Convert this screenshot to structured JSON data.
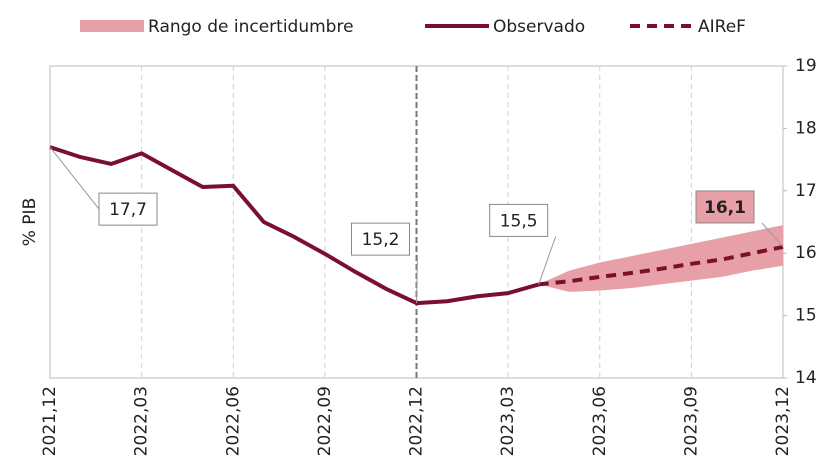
{
  "chart_data": {
    "type": "line",
    "y_label": "% PIB",
    "categories": [
      "2021,12",
      null,
      null,
      "2022,03",
      null,
      null,
      "2022,06",
      null,
      null,
      "2022,09",
      null,
      null,
      "2022,12",
      null,
      null,
      "2023,03",
      null,
      null,
      "2023,06",
      null,
      null,
      "2023,09",
      null,
      null,
      "2023,12"
    ],
    "band": {
      "name": "Rango de incertidumbre",
      "color": "#e8a0a8",
      "low": [
        null,
        null,
        null,
        null,
        null,
        null,
        null,
        null,
        null,
        null,
        null,
        null,
        null,
        null,
        null,
        null,
        15.5,
        15.38,
        15.4,
        15.44,
        15.5,
        15.56,
        15.62,
        15.72,
        15.8
      ],
      "high": [
        null,
        null,
        null,
        null,
        null,
        null,
        null,
        null,
        null,
        null,
        null,
        null,
        null,
        null,
        null,
        null,
        15.5,
        15.72,
        15.85,
        15.95,
        16.05,
        16.15,
        16.25,
        16.35,
        16.45
      ]
    },
    "series": [
      {
        "name": "Observado",
        "color": "#7b0f2e",
        "dash": false,
        "values": [
          17.7,
          17.54,
          17.43,
          17.6,
          17.33,
          17.06,
          17.08,
          16.5,
          16.26,
          15.99,
          15.7,
          15.43,
          15.2,
          15.23,
          15.31,
          15.36,
          15.5,
          null,
          null,
          null,
          null,
          null,
          null,
          null,
          null
        ],
        "value_labels": [
          "17,7",
          null,
          null,
          null,
          null,
          null,
          null,
          null,
          null,
          null,
          null,
          null,
          "15,2",
          null,
          null,
          null,
          "15,5",
          null,
          null,
          null,
          null,
          null,
          null,
          null,
          null
        ]
      },
      {
        "name": "AIReF",
        "color": "#7b0f2e",
        "dash": true,
        "values": [
          null,
          null,
          null,
          null,
          null,
          null,
          null,
          null,
          null,
          null,
          null,
          null,
          null,
          null,
          null,
          null,
          15.5,
          15.55,
          15.62,
          15.68,
          15.75,
          15.83,
          15.9,
          16.0,
          16.1
        ],
        "value_labels": [
          null,
          null,
          null,
          null,
          null,
          null,
          null,
          null,
          null,
          null,
          null,
          null,
          null,
          null,
          null,
          null,
          null,
          null,
          null,
          null,
          null,
          null,
          null,
          null,
          "16,1"
        ]
      }
    ],
    "ylim": [
      14,
      19
    ],
    "yticks": [
      14,
      15,
      16,
      17,
      18,
      19
    ],
    "reference_x": "2022,12",
    "grid": true,
    "legend": "top"
  }
}
